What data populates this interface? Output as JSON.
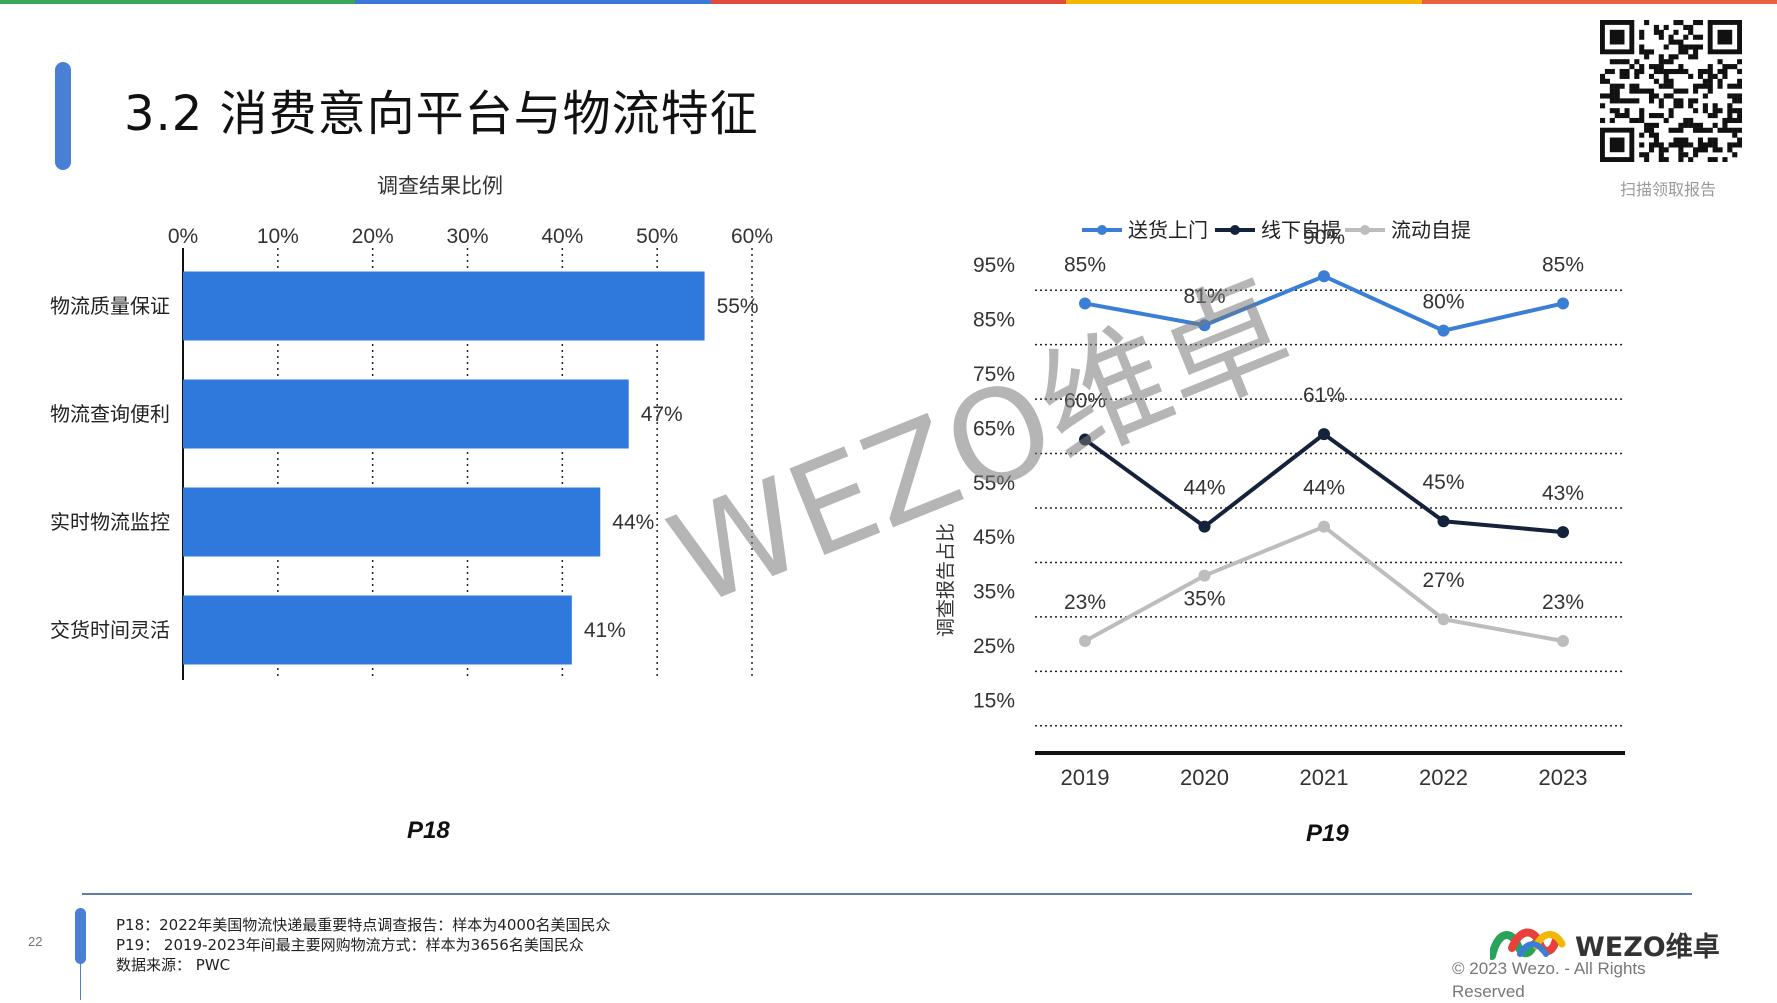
{
  "title": "3.2 消费意向平台与物流特征",
  "qr_caption": "扫描领取报告",
  "colors": {
    "accent": "#4a7fd6",
    "bar": "#2f78dc",
    "series_blue": "#3a7fd5",
    "series_navy": "#14233b",
    "series_gray": "#bdbdbd"
  },
  "top_bar_colors": [
    "#3aa757",
    "#3b78d8",
    "#e14b3b",
    "#f4b400",
    "#e8603c"
  ],
  "chart_data": [
    {
      "type": "bar",
      "orientation": "horizontal",
      "title": "调查结果比例",
      "categories": [
        "物流质量保证",
        "物流查询便利",
        "实时物流监控",
        "交货时间灵活"
      ],
      "values": [
        55,
        47,
        44,
        41
      ],
      "value_labels": [
        "55%",
        "47%",
        "44%",
        "41%"
      ],
      "xlim": [
        0,
        60
      ],
      "ticks": [
        "0%",
        "10%",
        "20%",
        "30%",
        "40%",
        "50%",
        "60%"
      ],
      "grid": "vertical-dotted",
      "tag": "P18"
    },
    {
      "type": "line",
      "ylabel": "调查报告占比",
      "x": [
        "2019",
        "2020",
        "2021",
        "2022",
        "2023"
      ],
      "ylim": [
        5,
        95
      ],
      "ticks": [
        "95%",
        "85%",
        "75%",
        "65%",
        "55%",
        "45%",
        "35%",
        "25%",
        "15%"
      ],
      "series": [
        {
          "name": "送货上门",
          "values": [
            85,
            81,
            90,
            80,
            85
          ],
          "labels": [
            "85%",
            "81%",
            "90%",
            "80%",
            "85%"
          ]
        },
        {
          "name": "线下自提",
          "values": [
            60,
            44,
            61,
            45,
            43
          ],
          "labels": [
            "60%",
            "44%",
            "61%",
            "45%",
            "43%"
          ]
        },
        {
          "name": "流动自提",
          "values": [
            23,
            35,
            44,
            27,
            23
          ],
          "labels": [
            "23%",
            "35%",
            "44%",
            "27%",
            "23%"
          ]
        }
      ],
      "legend": "top",
      "grid": "horizontal-dotted",
      "tag": "P19"
    }
  ],
  "notes": [
    "P18：2022年美国物流快递最重要特点调查报告：样本为4000名美国民众",
    "P19：  2019-2023年间最主要网购物流方式：样本为3656名美国民众",
    "数据来源：   PWC"
  ],
  "page_number": "22",
  "logo_text": "WEZO维卓",
  "copyright": "© 2023 Wezo. - All Rights Reserved",
  "watermark": "WEZO维卓"
}
